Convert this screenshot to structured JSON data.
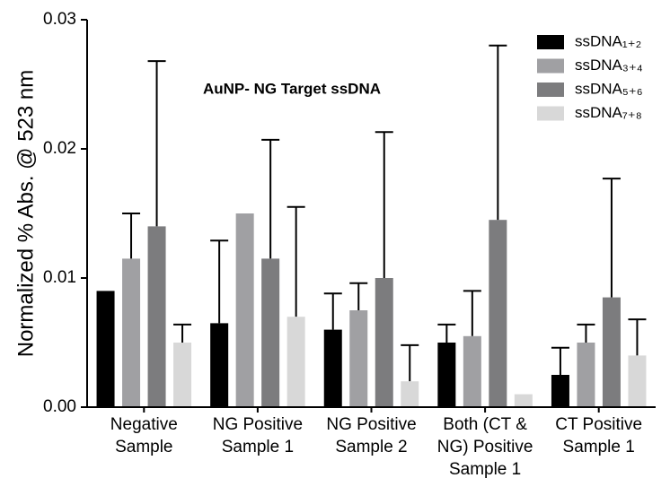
{
  "chart_data": {
    "type": "bar",
    "annotation": "AuNP- NG Target ssDNA",
    "y_label": "Normalized % Abs. @ 523 nm",
    "categories": [
      "Negative\nSample",
      "NG Positive\nSample 1",
      "NG Positive\nSample 2",
      "Both (CT &\nNG) Positive\nSample 1",
      "CT Positive\nSample 1"
    ],
    "series": [
      {
        "name": "ssDNA₁₊₂",
        "color": "#000000",
        "values": [
          0.009,
          0.0065,
          0.006,
          0.005,
          0.0025
        ],
        "errors": [
          null,
          0.0064,
          0.0028,
          0.0014,
          0.0021
        ]
      },
      {
        "name": "ssDNA₃₊₄",
        "color": "#a0a0a3",
        "values": [
          0.0115,
          0.015,
          0.0075,
          0.0055,
          0.005
        ],
        "errors": [
          0.0035,
          null,
          0.0021,
          0.0035,
          0.0014
        ]
      },
      {
        "name": "ssDNA₅₊₆",
        "color": "#7c7c7e",
        "values": [
          0.014,
          0.0115,
          0.01,
          0.0145,
          0.0085
        ],
        "errors": [
          0.0128,
          0.0092,
          0.0113,
          0.0135,
          0.0092
        ]
      },
      {
        "name": "ssDNA₇₊₈",
        "color": "#d8d8d8",
        "values": [
          0.005,
          0.007,
          0.002,
          0.001,
          0.004
        ],
        "errors": [
          0.0014,
          0.0085,
          0.0028,
          null,
          0.0028
        ]
      }
    ],
    "ylim": [
      0,
      0.03
    ],
    "yticks": [
      {
        "value": 0,
        "label": "0.00"
      },
      {
        "value": 0.01,
        "label": "0.01"
      },
      {
        "value": 0.02,
        "label": "0.02"
      },
      {
        "value": 0.03,
        "label": "0.03"
      }
    ],
    "legend": "top-right"
  }
}
